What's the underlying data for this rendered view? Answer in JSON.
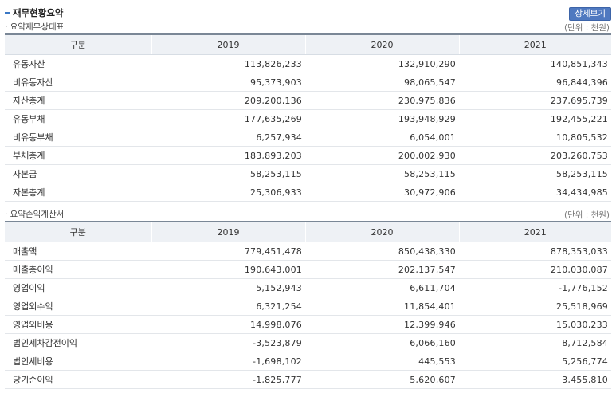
{
  "header": {
    "title": "재무현황요약",
    "detail_button": "상세보기"
  },
  "balance": {
    "title": "· 요약재무상태표",
    "unit": "(단위 : 천원)",
    "columns": [
      "구분",
      "2019",
      "2020",
      "2021"
    ],
    "rows": [
      {
        "label": "유동자산",
        "v2019": "113,826,233",
        "v2020": "132,910,290",
        "v2021": "140,851,343"
      },
      {
        "label": "비유동자산",
        "v2019": "95,373,903",
        "v2020": "98,065,547",
        "v2021": "96,844,396"
      },
      {
        "label": "자산총계",
        "v2019": "209,200,136",
        "v2020": "230,975,836",
        "v2021": "237,695,739"
      },
      {
        "label": "유동부채",
        "v2019": "177,635,269",
        "v2020": "193,948,929",
        "v2021": "192,455,221"
      },
      {
        "label": "비유동부채",
        "v2019": "6,257,934",
        "v2020": "6,054,001",
        "v2021": "10,805,532"
      },
      {
        "label": "부채총계",
        "v2019": "183,893,203",
        "v2020": "200,002,930",
        "v2021": "203,260,753"
      },
      {
        "label": "자본금",
        "v2019": "58,253,115",
        "v2020": "58,253,115",
        "v2021": "58,253,115"
      },
      {
        "label": "자본총계",
        "v2019": "25,306,933",
        "v2020": "30,972,906",
        "v2021": "34,434,985"
      }
    ]
  },
  "income": {
    "title": "· 요약손익계산서",
    "unit": "(단위 : 천원)",
    "columns": [
      "구분",
      "2019",
      "2020",
      "2021"
    ],
    "rows": [
      {
        "label": "매출액",
        "v2019": "779,451,478",
        "v2020": "850,438,330",
        "v2021": "878,353,033"
      },
      {
        "label": "매출총이익",
        "v2019": "190,643,001",
        "v2020": "202,137,547",
        "v2021": "210,030,087"
      },
      {
        "label": "영업이익",
        "v2019": "5,152,943",
        "v2020": "6,611,704",
        "v2021": "-1,776,152"
      },
      {
        "label": "영업외수익",
        "v2019": "6,321,254",
        "v2020": "11,854,401",
        "v2021": "25,518,969"
      },
      {
        "label": "영업외비용",
        "v2019": "14,998,076",
        "v2020": "12,399,946",
        "v2021": "15,030,233"
      },
      {
        "label": "법인세차감전이익",
        "v2019": "-3,523,879",
        "v2020": "6,066,160",
        "v2021": "8,712,584"
      },
      {
        "label": "법인세비용",
        "v2019": "-1,698,102",
        "v2020": "445,553",
        "v2021": "5,256,774"
      },
      {
        "label": "당기순이익",
        "v2019": "-1,825,777",
        "v2020": "5,620,607",
        "v2021": "3,455,810"
      }
    ]
  }
}
